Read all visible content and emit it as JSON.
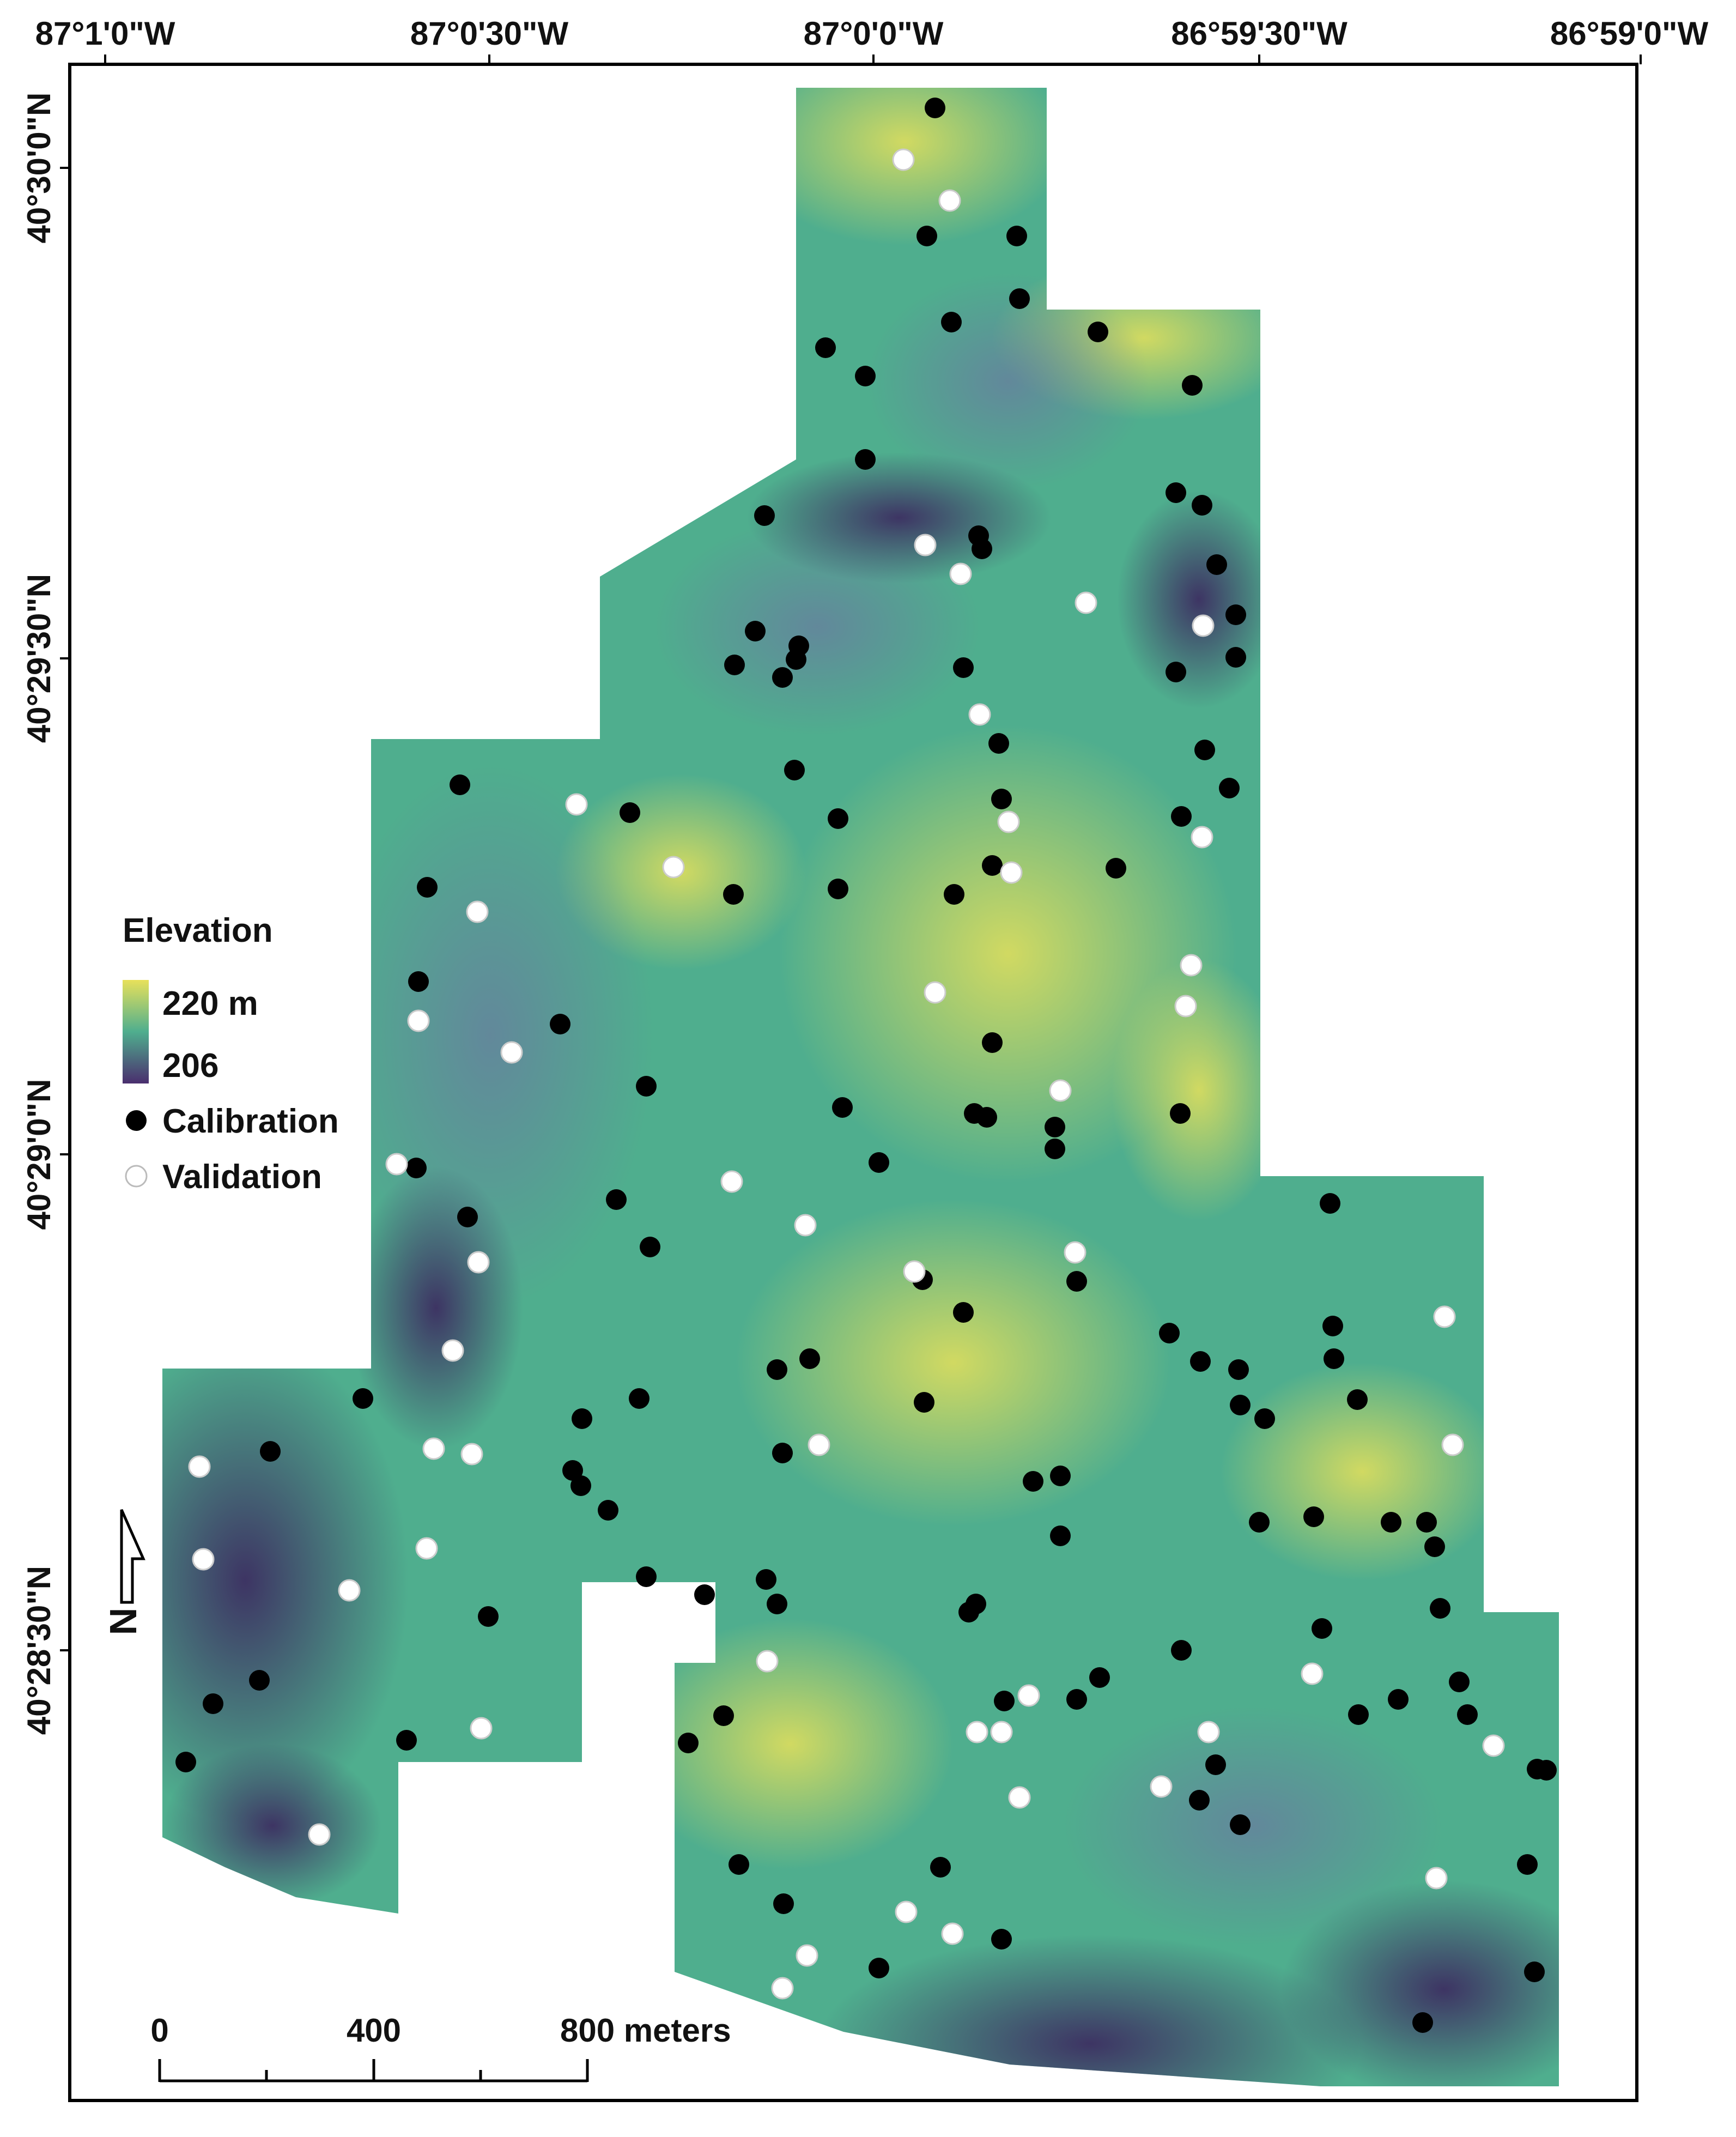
{
  "map": {
    "lon_labels": [
      "87°1'0\"W",
      "87°0'30\"W",
      "87°0'0\"W",
      "86°59'30\"W",
      "86°59'0\"W"
    ],
    "lat_labels": [
      "40°30'0\"N",
      "40°29'30\"N",
      "40°29'0\"N",
      "40°28'30\"N"
    ],
    "colors": {
      "high": "#e8e15a",
      "mid": "#4fae8e",
      "low": "#4a2e6e",
      "calibration": "#000000",
      "validation": "#ffffff"
    }
  },
  "legend": {
    "title": "Elevation",
    "max_label": "220 m",
    "min_label": "206",
    "calibration_label": "Calibration",
    "validation_label": "Validation"
  },
  "scalebar": {
    "ticks": [
      "0",
      "400",
      "800 meters"
    ]
  },
  "north_arrow": {
    "label": "N"
  },
  "points": {
    "calibration": [
      [
        1716,
        198
      ],
      [
        1701,
        433
      ],
      [
        1866,
        433
      ],
      [
        1746,
        591
      ],
      [
        1871,
        548
      ],
      [
        2015,
        609
      ],
      [
        1515,
        638
      ],
      [
        1588,
        690
      ],
      [
        2188,
        707
      ],
      [
        1588,
        843
      ],
      [
        2158,
        904
      ],
      [
        2206,
        927
      ],
      [
        1403,
        946
      ],
      [
        1796,
        983
      ],
      [
        1802,
        1007
      ],
      [
        2233,
        1036
      ],
      [
        2268,
        1128
      ],
      [
        2268,
        1206
      ],
      [
        1386,
        1158
      ],
      [
        1461,
        1210
      ],
      [
        1466,
        1185
      ],
      [
        1348,
        1220
      ],
      [
        1768,
        1225
      ],
      [
        1436,
        1243
      ],
      [
        1833,
        1364
      ],
      [
        2158,
        1233
      ],
      [
        2211,
        1376
      ],
      [
        2256,
        1446
      ],
      [
        1458,
        1413
      ],
      [
        1838,
        1466
      ],
      [
        844,
        1440
      ],
      [
        1156,
        1491
      ],
      [
        1538,
        1502
      ],
      [
        1346,
        1641
      ],
      [
        1538,
        1631
      ],
      [
        1751,
        1641
      ],
      [
        1821,
        1588
      ],
      [
        2048,
        1593
      ],
      [
        2168,
        1498
      ],
      [
        784,
        1628
      ],
      [
        768,
        1801
      ],
      [
        1028,
        1879
      ],
      [
        1821,
        1913
      ],
      [
        1186,
        1993
      ],
      [
        1546,
        2032
      ],
      [
        1788,
        2043
      ],
      [
        1811,
        2050
      ],
      [
        1936,
        2068
      ],
      [
        1936,
        2108
      ],
      [
        2166,
        2043
      ],
      [
        1613,
        2133
      ],
      [
        764,
        2143
      ],
      [
        858,
        2233
      ],
      [
        1131,
        2201
      ],
      [
        1193,
        2288
      ],
      [
        1693,
        2348
      ],
      [
        1976,
        2351
      ],
      [
        1768,
        2408
      ],
      [
        2441,
        2208
      ],
      [
        2146,
        2446
      ],
      [
        2203,
        2498
      ],
      [
        2446,
        2433
      ],
      [
        2448,
        2493
      ],
      [
        2273,
        2513
      ],
      [
        2276,
        2578
      ],
      [
        2321,
        2603
      ],
      [
        2491,
        2568
      ],
      [
        1486,
        2493
      ],
      [
        1426,
        2513
      ],
      [
        1173,
        2566
      ],
      [
        1068,
        2603
      ],
      [
        1696,
        2573
      ],
      [
        666,
        2566
      ],
      [
        496,
        2663
      ],
      [
        1051,
        2698
      ],
      [
        1066,
        2726
      ],
      [
        1116,
        2771
      ],
      [
        1436,
        2666
      ],
      [
        1896,
        2718
      ],
      [
        1946,
        2708
      ],
      [
        1946,
        2818
      ],
      [
        2311,
        2793
      ],
      [
        2411,
        2783
      ],
      [
        2553,
        2793
      ],
      [
        2618,
        2793
      ],
      [
        2633,
        2838
      ],
      [
        2643,
        2951
      ],
      [
        1186,
        2893
      ],
      [
        1293,
        2926
      ],
      [
        1406,
        2898
      ],
      [
        1426,
        2943
      ],
      [
        1791,
        2943
      ],
      [
        1778,
        2958
      ],
      [
        2168,
        3028
      ],
      [
        2426,
        2988
      ],
      [
        2018,
        3078
      ],
      [
        1976,
        3118
      ],
      [
        1843,
        3121
      ],
      [
        2678,
        3086
      ],
      [
        2566,
        3118
      ],
      [
        2493,
        3146
      ],
      [
        2693,
        3146
      ],
      [
        2821,
        3246
      ],
      [
        2838,
        3248
      ],
      [
        2231,
        3238
      ],
      [
        2201,
        3303
      ],
      [
        2276,
        3348
      ],
      [
        476,
        3083
      ],
      [
        391,
        3126
      ],
      [
        341,
        3233
      ],
      [
        746,
        3193
      ],
      [
        896,
        2966
      ],
      [
        1328,
        3148
      ],
      [
        1263,
        3198
      ],
      [
        1356,
        3421
      ],
      [
        1438,
        3493
      ],
      [
        1726,
        3426
      ],
      [
        1838,
        3558
      ],
      [
        1613,
        3611
      ],
      [
        2803,
        3421
      ],
      [
        2816,
        3618
      ],
      [
        2611,
        3711
      ]
    ],
    "validation": [
      [
        1658,
        293
      ],
      [
        1743,
        368
      ],
      [
        1698,
        1000
      ],
      [
        1763,
        1053
      ],
      [
        1993,
        1106
      ],
      [
        2208,
        1148
      ],
      [
        1798,
        1311
      ],
      [
        1851,
        1508
      ],
      [
        1856,
        1601
      ],
      [
        2206,
        1536
      ],
      [
        1058,
        1476
      ],
      [
        1236,
        1591
      ],
      [
        876,
        1673
      ],
      [
        1716,
        1821
      ],
      [
        2186,
        1771
      ],
      [
        2176,
        1846
      ],
      [
        1946,
        2001
      ],
      [
        768,
        1873
      ],
      [
        939,
        1931
      ],
      [
        728,
        2136
      ],
      [
        1343,
        2168
      ],
      [
        878,
        2316
      ],
      [
        1678,
        2333
      ],
      [
        1478,
        2248
      ],
      [
        1973,
        2298
      ],
      [
        2651,
        2416
      ],
      [
        2666,
        2651
      ],
      [
        831,
        2478
      ],
      [
        1503,
        2651
      ],
      [
        796,
        2658
      ],
      [
        866,
        2668
      ],
      [
        366,
        2691
      ],
      [
        373,
        2861
      ],
      [
        641,
        2918
      ],
      [
        783,
        2841
      ],
      [
        1408,
        3048
      ],
      [
        883,
        3171
      ],
      [
        2408,
        3071
      ],
      [
        1888,
        3111
      ],
      [
        1793,
        3178
      ],
      [
        1838,
        3178
      ],
      [
        2218,
        3178
      ],
      [
        2741,
        3203
      ],
      [
        2131,
        3278
      ],
      [
        1871,
        3298
      ],
      [
        2636,
        3446
      ],
      [
        1663,
        3508
      ],
      [
        1748,
        3548
      ],
      [
        1481,
        3588
      ],
      [
        1436,
        3648
      ],
      [
        586,
        3366
      ]
    ]
  }
}
